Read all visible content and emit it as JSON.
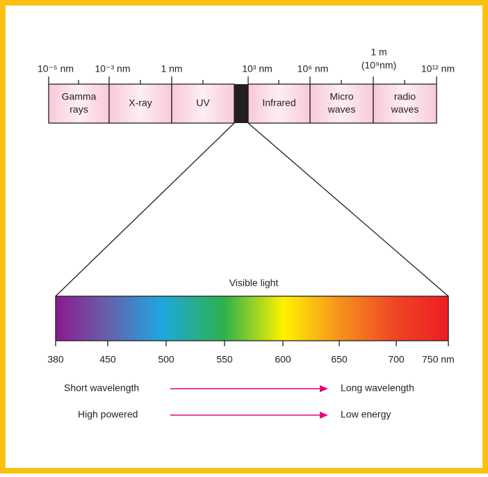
{
  "spectrum": {
    "wavelength_labels": [
      "10⁻⁵ nm",
      "10⁻³ nm",
      "1 nm",
      "10³ nm",
      "10⁶ nm",
      "1 m",
      "(10⁹nm)",
      "10¹² nm"
    ],
    "bands": [
      "Gamma rays",
      "X-ray",
      "UV",
      "Infrared",
      "Micro waves",
      "radio waves"
    ],
    "visible_title": "Visible light",
    "visible_scale": [
      "380",
      "450",
      "500",
      "550",
      "600",
      "650",
      "700",
      "750 nm"
    ],
    "arrows": [
      {
        "from": "Short wavelength",
        "to": "Long wavelength"
      },
      {
        "from": "High powered",
        "to": "Low energy"
      }
    ]
  }
}
